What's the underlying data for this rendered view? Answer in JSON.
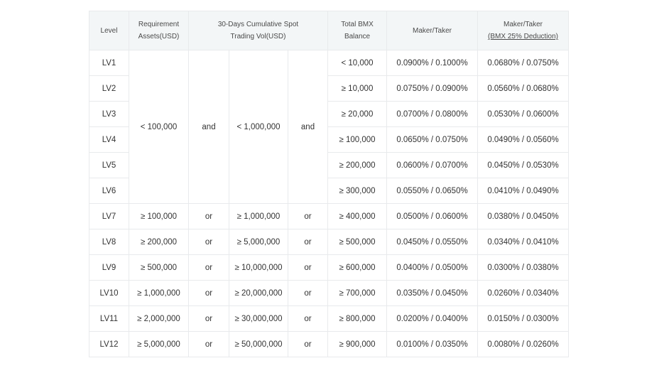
{
  "headers": {
    "level": "Level",
    "requirement_line1": "Requirement",
    "requirement_line2": "Assets(USD)",
    "vol_line1": "30-Days Cumulative Spot",
    "vol_line2": "Trading Vol(USD)",
    "bmx_balance": "Total BMX Balance",
    "maker_taker": "Maker/Taker",
    "maker_taker_disc_line1": "Maker/Taker",
    "maker_taker_disc_line2": "(BMX 25% Deduction)"
  },
  "group_a": {
    "assets": "< 100,000",
    "conj1": "and",
    "volume": "< 1,000,000",
    "conj2": "and"
  },
  "rows": [
    {
      "level": "LV1",
      "bmx": "< 10,000",
      "mt": "0.0900% / 0.1000%",
      "mtd": "0.0680% / 0.0750%"
    },
    {
      "level": "LV2",
      "bmx": "≥ 10,000",
      "mt": "0.0750% / 0.0900%",
      "mtd": "0.0560% / 0.0680%"
    },
    {
      "level": "LV3",
      "bmx": "≥ 20,000",
      "mt": "0.0700% / 0.0800%",
      "mtd": "0.0530% / 0.0600%"
    },
    {
      "level": "LV4",
      "bmx": "≥ 100,000",
      "mt": "0.0650% / 0.0750%",
      "mtd": "0.0490% / 0.0560%"
    },
    {
      "level": "LV5",
      "bmx": "≥ 200,000",
      "mt": "0.0600% / 0.0700%",
      "mtd": "0.0450% / 0.0530%"
    },
    {
      "level": "LV6",
      "bmx": "≥ 300,000",
      "mt": "0.0550% / 0.0650%",
      "mtd": "0.0410% / 0.0490%"
    },
    {
      "level": "LV7",
      "assets": "≥ 100,000",
      "conj1": "or",
      "volume": "≥ 1,000,000",
      "conj2": "or",
      "bmx": "≥ 400,000",
      "mt": "0.0500% / 0.0600%",
      "mtd": "0.0380% / 0.0450%"
    },
    {
      "level": "LV8",
      "assets": "≥ 200,000",
      "conj1": "or",
      "volume": "≥ 5,000,000",
      "conj2": "or",
      "bmx": "≥ 500,000",
      "mt": "0.0450% / 0.0550%",
      "mtd": "0.0340% / 0.0410%"
    },
    {
      "level": "LV9",
      "assets": "≥ 500,000",
      "conj1": "or",
      "volume": "≥ 10,000,000",
      "conj2": "or",
      "bmx": "≥ 600,000",
      "mt": "0.0400% / 0.0500%",
      "mtd": "0.0300% / 0.0380%"
    },
    {
      "level": "LV10",
      "assets": "≥ 1,000,000",
      "conj1": "or",
      "volume": "≥ 20,000,000",
      "conj2": "or",
      "bmx": "≥ 700,000",
      "mt": "0.0350% / 0.0450%",
      "mtd": "0.0260% / 0.0340%"
    },
    {
      "level": "LV11",
      "assets": "≥ 2,000,000",
      "conj1": "or",
      "volume": "≥ 30,000,000",
      "conj2": "or",
      "bmx": "≥ 800,000",
      "mt": "0.0200% / 0.0400%",
      "mtd": "0.0150% / 0.0300%"
    },
    {
      "level": "LV12",
      "assets": "≥ 5,000,000",
      "conj1": "or",
      "volume": "≥ 50,000,000",
      "conj2": "or",
      "bmx": "≥ 900,000",
      "mt": "0.0100% / 0.0350%",
      "mtd": "0.0080% / 0.0260%"
    }
  ]
}
